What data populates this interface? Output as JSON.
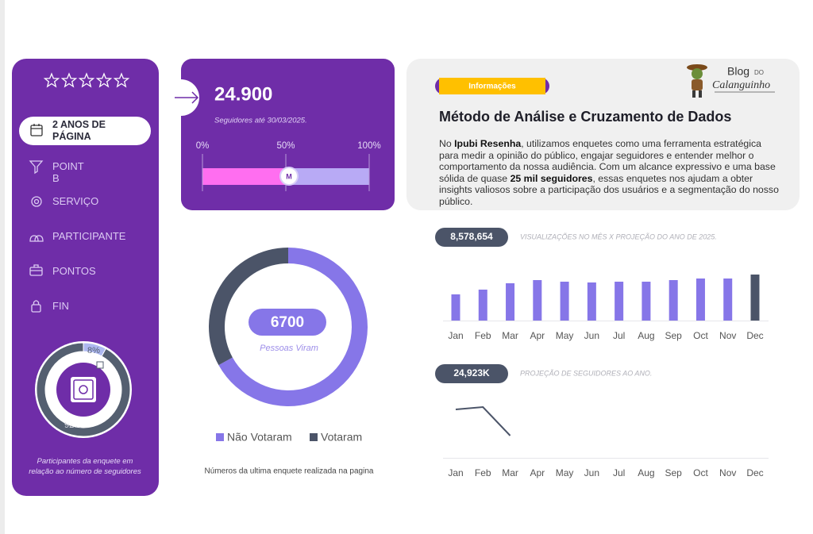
{
  "sidebar": {
    "menu": [
      {
        "label": "2 ANOS DE PÁGINA",
        "active": true
      },
      {
        "label": "POINT B",
        "active": false
      },
      {
        "label": "SERVIÇO",
        "active": false
      },
      {
        "label": "PARTICIPANTE",
        "active": false
      },
      {
        "label": "PONTOS",
        "active": false
      },
      {
        "label": "FIN",
        "active": false
      }
    ],
    "participation_chart": {
      "type": "pie",
      "values": [
        8,
        92
      ],
      "value_labels": [
        "8%",
        "92%"
      ],
      "colors": [
        "#aeb8f0",
        "#545f70"
      ]
    },
    "caption": "Participantes da enquete em relação ao número de seguidores"
  },
  "followers_card": {
    "value": "24.900",
    "subtitle": "Seguidores até 30/03/2025.",
    "progress": {
      "value": 50,
      "marker": "M",
      "fill_color": "#ff6ef0",
      "track_color": "#b8aaf5",
      "xlim": [
        0,
        100
      ],
      "xticks": [
        {
          "value": 0,
          "label": "0%"
        },
        {
          "value": 50,
          "label": "50%"
        },
        {
          "value": 100,
          "label": "100%"
        }
      ]
    }
  },
  "vote_chart": {
    "type": "pie",
    "center_value": "6700",
    "center_label": "Pessoas Viram",
    "series": [
      {
        "name": "Não Votaram",
        "color": "#8676e8",
        "value": 67
      },
      {
        "name": "Votaram",
        "color": "#4b5468",
        "value": 33
      }
    ],
    "caption": "Números da ultima enquete realizada na pagina"
  },
  "info": {
    "badge": "Informações",
    "logo": {
      "blog": "Blog",
      "do": "DO",
      "name": "Calanguinho"
    },
    "title": "Método de Análise e Cruzamento de Dados",
    "body": [
      {
        "text": "No ",
        "bold": false
      },
      {
        "text": "Ipubi Resenha",
        "bold": true
      },
      {
        "text": ", utilizamos enquetes como uma ferramenta estratégica para medir a opinião do público, engajar seguidores e entender melhor o comportamento da nossa audiência. Com um alcance expressivo e uma base sólida de quase ",
        "bold": false
      },
      {
        "text": "25 mil seguidores",
        "bold": true
      },
      {
        "text": ", essas enquetes nos ajudam a obter insights valiosos sobre a participação dos usuários e a segmentação do nosso público.",
        "bold": false
      }
    ]
  },
  "views_chart": {
    "type": "bar",
    "badge": "8,578,654",
    "title": "VISUALIZAÇÕES NO MÊS X PROJEÇÃO DO ANO DE 2025.",
    "categories": [
      "Jan",
      "Feb",
      "Mar",
      "Apr",
      "May",
      "Jun",
      "Jul",
      "Aug",
      "Sep",
      "Oct",
      "Nov",
      "Dec"
    ],
    "values": [
      33,
      39,
      47,
      51,
      49,
      48,
      49,
      49,
      51,
      53,
      53,
      58
    ],
    "colors": [
      "#8676e8",
      "#8676e8",
      "#8676e8",
      "#8676e8",
      "#8676e8",
      "#8676e8",
      "#8676e8",
      "#8676e8",
      "#8676e8",
      "#8676e8",
      "#8676e8",
      "#4b5468"
    ]
  },
  "followers_chart": {
    "type": "line",
    "badge": "24,923K",
    "title": "PROJEÇÃO DE SEGUIDORES AO ANO.",
    "categories": [
      "Jan",
      "Feb",
      "Mar",
      "Apr",
      "May",
      "Jun",
      "Jul",
      "Aug",
      "Sep",
      "Oct",
      "Nov",
      "Dec"
    ],
    "values": [
      61,
      64,
      28,
      null,
      null,
      null,
      null,
      null,
      null,
      null,
      null,
      null
    ],
    "color": "#4b5468"
  }
}
